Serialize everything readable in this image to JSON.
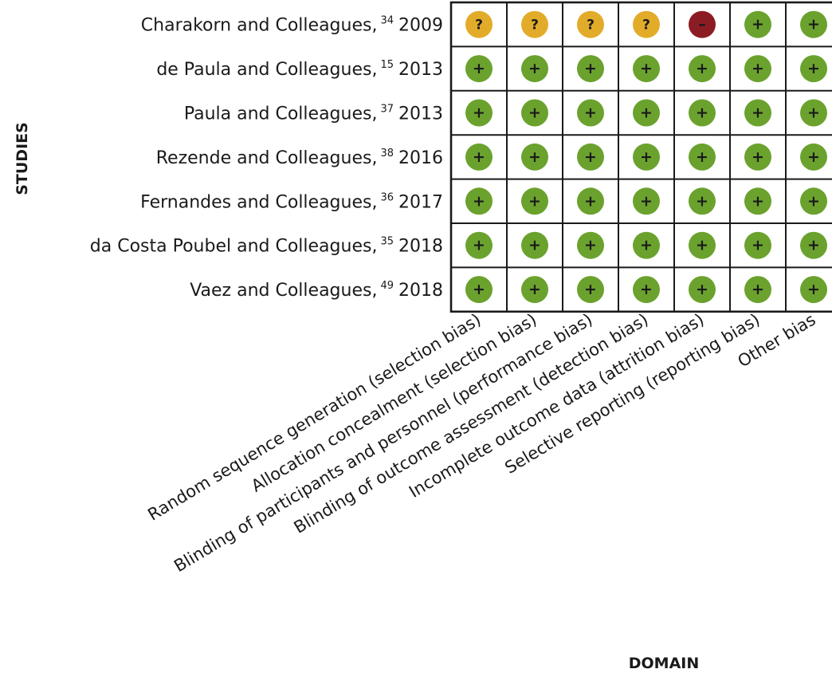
{
  "axis": {
    "studies_title": "STUDIES",
    "domain_title": "DOMAIN"
  },
  "studies": [
    {
      "author": "Charakorn and Colleagues,",
      "ref": "34",
      "year": "2009"
    },
    {
      "author": "de Paula and Colleagues,",
      "ref": "15",
      "year": "2013"
    },
    {
      "author": "Paula and Colleagues,",
      "ref": "37",
      "year": "2013"
    },
    {
      "author": "Rezende and Colleagues,",
      "ref": "38",
      "year": "2016"
    },
    {
      "author": "Fernandes and Colleagues,",
      "ref": "36",
      "year": "2017"
    },
    {
      "author": "da Costa Poubel and Colleagues,",
      "ref": "35",
      "year": "2018"
    },
    {
      "author": "Vaez and Colleagues,",
      "ref": "49",
      "year": "2018"
    }
  ],
  "domains": [
    "Random sequence generation (selection bias)",
    "Allocation concealment (selection bias)",
    "Blinding of participants and personnel (performance bias)",
    "Blinding of outcome assessment (detection bias)",
    "Incomplete outcome data (attrition bias)",
    "Selective reporting (reporting bias)",
    "Other bias"
  ],
  "judgements": [
    [
      "?",
      "?",
      "?",
      "?",
      "-",
      "+",
      "+"
    ],
    [
      "+",
      "+",
      "+",
      "+",
      "+",
      "+",
      "+"
    ],
    [
      "+",
      "+",
      "+",
      "+",
      "+",
      "+",
      "+"
    ],
    [
      "+",
      "+",
      "+",
      "+",
      "+",
      "+",
      "+"
    ],
    [
      "+",
      "+",
      "+",
      "+",
      "+",
      "+",
      "+"
    ],
    [
      "+",
      "+",
      "+",
      "+",
      "+",
      "+",
      "+"
    ],
    [
      "+",
      "+",
      "+",
      "+",
      "+",
      "+",
      "+"
    ]
  ],
  "judgement_styles": {
    "+": {
      "name": "low-risk",
      "color": "#6aa22d",
      "glyph": "+"
    },
    "?": {
      "name": "unclear-risk",
      "color": "#e2ac2a",
      "glyph": "?"
    },
    "-": {
      "name": "high-risk",
      "color": "#8c1c24",
      "glyph": "–"
    }
  },
  "colors": {
    "grid_line": "#1a1a1a",
    "text": "#1a1a1a"
  }
}
